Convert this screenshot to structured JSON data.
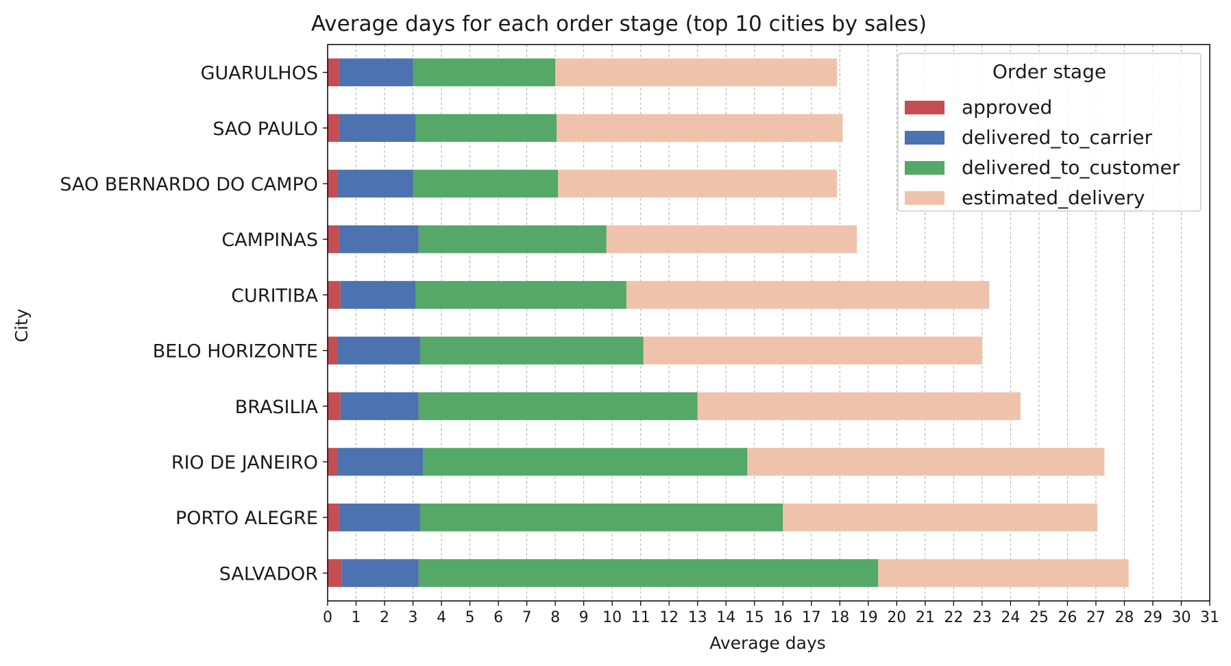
{
  "chart_data": {
    "type": "bar",
    "orientation": "horizontal",
    "stacked": true,
    "title": "Average days for each order stage (top 10 cities by sales)",
    "xlabel": "Average days",
    "ylabel": "City",
    "xlim": [
      0,
      31
    ],
    "xticks": [
      0,
      1,
      2,
      3,
      4,
      5,
      6,
      7,
      8,
      9,
      10,
      11,
      12,
      13,
      14,
      15,
      16,
      17,
      18,
      19,
      20,
      21,
      22,
      23,
      24,
      25,
      26,
      27,
      28,
      29,
      30,
      31
    ],
    "grid": "vertical dashed",
    "legend": {
      "title": "Order stage",
      "placement": "top-right"
    },
    "categories": [
      "GUARULHOS",
      "SAO PAULO",
      "SAO BERNARDO DO CAMPO",
      "CAMPINAS",
      "CURITIBA",
      "BELO HORIZONTE",
      "BRASILIA",
      "RIO DE JANEIRO",
      "PORTO ALEGRE",
      "SALVADOR"
    ],
    "series": [
      {
        "name": "approved",
        "color": "#c44e52",
        "values": [
          0.4,
          0.4,
          0.35,
          0.4,
          0.45,
          0.35,
          0.45,
          0.35,
          0.4,
          0.5
        ]
      },
      {
        "name": "delivered_to_carrier",
        "color": "#4c72b0",
        "values": [
          2.6,
          2.7,
          2.65,
          2.8,
          2.65,
          2.9,
          2.75,
          3.0,
          2.85,
          2.7
        ]
      },
      {
        "name": "delivered_to_customer",
        "color": "#55a868",
        "values": [
          5.0,
          4.95,
          5.1,
          6.6,
          7.4,
          7.85,
          9.8,
          11.4,
          12.75,
          16.15
        ]
      },
      {
        "name": "estimated_delivery",
        "color": "#efc3ab",
        "values": [
          9.9,
          10.05,
          9.8,
          8.8,
          12.75,
          11.9,
          11.35,
          12.55,
          11.05,
          8.8
        ]
      }
    ]
  }
}
